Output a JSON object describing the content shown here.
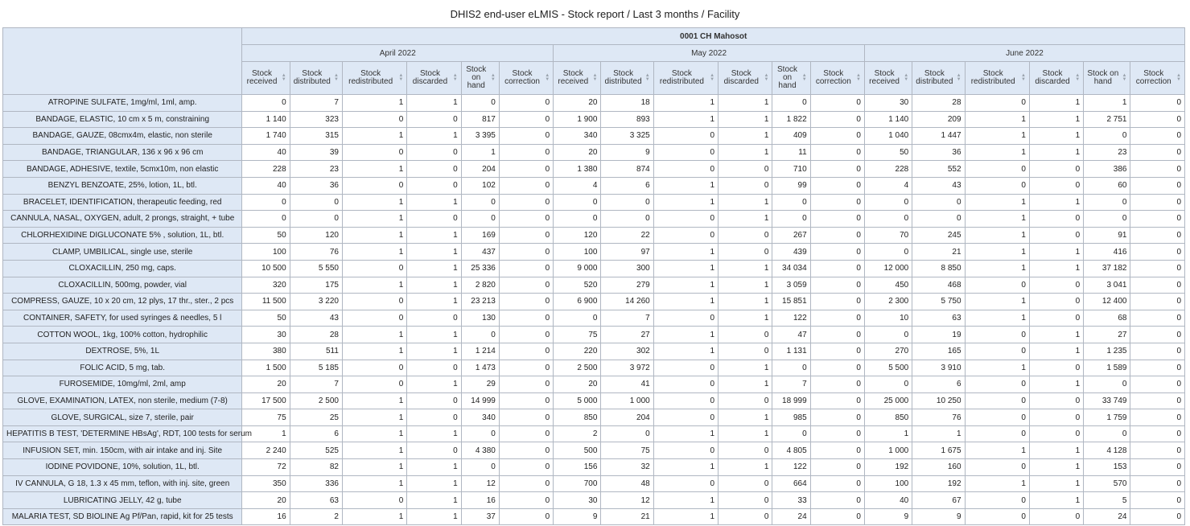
{
  "title": "DHIS2 end-user eLMIS - Stock report / Last 3 months / Facility",
  "org_unit": "0001 CH Mahosot",
  "periods": [
    "April 2022",
    "May 2022",
    "June 2022"
  ],
  "column_headers": [
    [
      "Stock received",
      "Stock distributed",
      "Stock redistributed",
      "Stock discarded",
      "Stock on hand",
      "Stock correction"
    ],
    [
      "Stock received",
      "Stock distributed",
      "Stock redistributed",
      "Stock discarded",
      "Stock on hand",
      "Stock correction"
    ],
    [
      "Stock received",
      "Stock distributed",
      "Stock redistributed",
      "Stock discarded",
      "Stock on hand",
      "Stock correction"
    ]
  ],
  "rows": [
    {
      "label": "ATROPINE SULFATE, 1mg/ml, 1ml, amp.",
      "values": [
        "0",
        "7",
        "1",
        "1",
        "0",
        "0",
        "20",
        "18",
        "1",
        "1",
        "0",
        "0",
        "30",
        "28",
        "0",
        "1",
        "1",
        "0"
      ]
    },
    {
      "label": "BANDAGE, ELASTIC, 10 cm x 5 m, constraining",
      "values": [
        "1 140",
        "323",
        "0",
        "0",
        "817",
        "0",
        "1 900",
        "893",
        "1",
        "1",
        "1 822",
        "0",
        "1 140",
        "209",
        "1",
        "1",
        "2 751",
        "0"
      ]
    },
    {
      "label": "BANDAGE, GAUZE, 08cmx4m, elastic, non sterile",
      "values": [
        "1 740",
        "315",
        "1",
        "1",
        "3 395",
        "0",
        "340",
        "3 325",
        "0",
        "1",
        "409",
        "0",
        "1 040",
        "1 447",
        "1",
        "1",
        "0",
        "0"
      ]
    },
    {
      "label": "BANDAGE, TRIANGULAR, 136 x 96 x 96 cm",
      "values": [
        "40",
        "39",
        "0",
        "0",
        "1",
        "0",
        "20",
        "9",
        "0",
        "1",
        "11",
        "0",
        "50",
        "36",
        "1",
        "1",
        "23",
        "0"
      ]
    },
    {
      "label": "BANDAGE, ADHESIVE, textile, 5cmx10m, non elastic",
      "values": [
        "228",
        "23",
        "1",
        "0",
        "204",
        "0",
        "1 380",
        "874",
        "0",
        "0",
        "710",
        "0",
        "228",
        "552",
        "0",
        "0",
        "386",
        "0"
      ]
    },
    {
      "label": "BENZYL BENZOATE, 25%, lotion, 1L, btl.",
      "values": [
        "40",
        "36",
        "0",
        "0",
        "102",
        "0",
        "4",
        "6",
        "1",
        "0",
        "99",
        "0",
        "4",
        "43",
        "0",
        "0",
        "60",
        "0"
      ]
    },
    {
      "label": "BRACELET, IDENTIFICATION, therapeutic feeding, red",
      "values": [
        "0",
        "0",
        "1",
        "1",
        "0",
        "0",
        "0",
        "0",
        "1",
        "1",
        "0",
        "0",
        "0",
        "0",
        "1",
        "1",
        "0",
        "0"
      ]
    },
    {
      "label": "CANNULA, NASAL, OXYGEN, adult, 2 prongs, straight, + tube",
      "values": [
        "0",
        "0",
        "1",
        "0",
        "0",
        "0",
        "0",
        "0",
        "0",
        "1",
        "0",
        "0",
        "0",
        "0",
        "1",
        "0",
        "0",
        "0"
      ]
    },
    {
      "label": "CHLORHEXIDINE DIGLUCONATE 5% , solution, 1L, btl.",
      "values": [
        "50",
        "120",
        "1",
        "1",
        "169",
        "0",
        "120",
        "22",
        "0",
        "0",
        "267",
        "0",
        "70",
        "245",
        "1",
        "0",
        "91",
        "0"
      ]
    },
    {
      "label": "CLAMP, UMBILICAL, single use, sterile",
      "values": [
        "100",
        "76",
        "1",
        "1",
        "437",
        "0",
        "100",
        "97",
        "1",
        "0",
        "439",
        "0",
        "0",
        "21",
        "1",
        "1",
        "416",
        "0"
      ]
    },
    {
      "label": "CLOXACILLIN, 250 mg, caps.",
      "values": [
        "10 500",
        "5 550",
        "0",
        "1",
        "25 336",
        "0",
        "9 000",
        "300",
        "1",
        "1",
        "34 034",
        "0",
        "12 000",
        "8 850",
        "1",
        "1",
        "37 182",
        "0"
      ]
    },
    {
      "label": "CLOXACILLIN, 500mg, powder, vial",
      "values": [
        "320",
        "175",
        "1",
        "1",
        "2 820",
        "0",
        "520",
        "279",
        "1",
        "1",
        "3 059",
        "0",
        "450",
        "468",
        "0",
        "0",
        "3 041",
        "0"
      ]
    },
    {
      "label": "COMPRESS, GAUZE, 10 x 20 cm, 12 plys, 17 thr., ster., 2 pcs",
      "values": [
        "11 500",
        "3 220",
        "0",
        "1",
        "23 213",
        "0",
        "6 900",
        "14 260",
        "1",
        "1",
        "15 851",
        "0",
        "2 300",
        "5 750",
        "1",
        "0",
        "12 400",
        "0"
      ]
    },
    {
      "label": "CONTAINER, SAFETY, for used syringes & needles, 5 l",
      "values": [
        "50",
        "43",
        "0",
        "0",
        "130",
        "0",
        "0",
        "7",
        "0",
        "1",
        "122",
        "0",
        "10",
        "63",
        "1",
        "0",
        "68",
        "0"
      ]
    },
    {
      "label": "COTTON WOOL, 1kg, 100% cotton, hydrophilic",
      "values": [
        "30",
        "28",
        "1",
        "1",
        "0",
        "0",
        "75",
        "27",
        "1",
        "0",
        "47",
        "0",
        "0",
        "19",
        "0",
        "1",
        "27",
        "0"
      ]
    },
    {
      "label": "DEXTROSE, 5%, 1L",
      "values": [
        "380",
        "511",
        "1",
        "1",
        "1 214",
        "0",
        "220",
        "302",
        "1",
        "0",
        "1 131",
        "0",
        "270",
        "165",
        "0",
        "1",
        "1 235",
        "0"
      ]
    },
    {
      "label": "FOLIC ACID, 5 mg, tab.",
      "values": [
        "1 500",
        "5 185",
        "0",
        "0",
        "1 473",
        "0",
        "2 500",
        "3 972",
        "0",
        "1",
        "0",
        "0",
        "5 500",
        "3 910",
        "1",
        "0",
        "1 589",
        "0"
      ]
    },
    {
      "label": "FUROSEMIDE, 10mg/ml, 2ml, amp",
      "values": [
        "20",
        "7",
        "0",
        "1",
        "29",
        "0",
        "20",
        "41",
        "0",
        "1",
        "7",
        "0",
        "0",
        "6",
        "0",
        "1",
        "0",
        "0"
      ]
    },
    {
      "label": "GLOVE, EXAMINATION, LATEX, non sterile, medium (7-8)",
      "values": [
        "17 500",
        "2 500",
        "1",
        "0",
        "14 999",
        "0",
        "5 000",
        "1 000",
        "0",
        "0",
        "18 999",
        "0",
        "25 000",
        "10 250",
        "0",
        "0",
        "33 749",
        "0"
      ]
    },
    {
      "label": "GLOVE, SURGICAL, size 7, sterile, pair",
      "values": [
        "75",
        "25",
        "1",
        "0",
        "340",
        "0",
        "850",
        "204",
        "0",
        "1",
        "985",
        "0",
        "850",
        "76",
        "0",
        "0",
        "1 759",
        "0"
      ]
    },
    {
      "label": "HEPATITIS B TEST, 'DETERMINE HBsAg', RDT, 100 tests for serum",
      "values": [
        "1",
        "6",
        "1",
        "1",
        "0",
        "0",
        "2",
        "0",
        "1",
        "1",
        "0",
        "0",
        "1",
        "1",
        "0",
        "0",
        "0",
        "0"
      ]
    },
    {
      "label": "INFUSION SET, min. 150cm, with air intake and inj. Site",
      "values": [
        "2 240",
        "525",
        "1",
        "0",
        "4 380",
        "0",
        "500",
        "75",
        "0",
        "0",
        "4 805",
        "0",
        "1 000",
        "1 675",
        "1",
        "1",
        "4 128",
        "0"
      ]
    },
    {
      "label": "IODINE POVIDONE, 10%, solution, 1L, btl.",
      "values": [
        "72",
        "82",
        "1",
        "1",
        "0",
        "0",
        "156",
        "32",
        "1",
        "1",
        "122",
        "0",
        "192",
        "160",
        "0",
        "1",
        "153",
        "0"
      ]
    },
    {
      "label": "IV CANNULA, G 18, 1.3 x 45 mm, teflon, with inj. site, green",
      "values": [
        "350",
        "336",
        "1",
        "1",
        "12",
        "0",
        "700",
        "48",
        "0",
        "0",
        "664",
        "0",
        "100",
        "192",
        "1",
        "1",
        "570",
        "0"
      ]
    },
    {
      "label": "LUBRICATING JELLY, 42 g, tube",
      "values": [
        "20",
        "63",
        "0",
        "1",
        "16",
        "0",
        "30",
        "12",
        "1",
        "0",
        "33",
        "0",
        "40",
        "67",
        "0",
        "1",
        "5",
        "0"
      ]
    },
    {
      "label": "MALARIA TEST, SD BIOLINE Ag Pf/Pan, rapid, kit for 25 tests",
      "values": [
        "16",
        "2",
        "1",
        "1",
        "37",
        "0",
        "9",
        "21",
        "1",
        "0",
        "24",
        "0",
        "9",
        "9",
        "0",
        "0",
        "24",
        "0"
      ]
    }
  ]
}
